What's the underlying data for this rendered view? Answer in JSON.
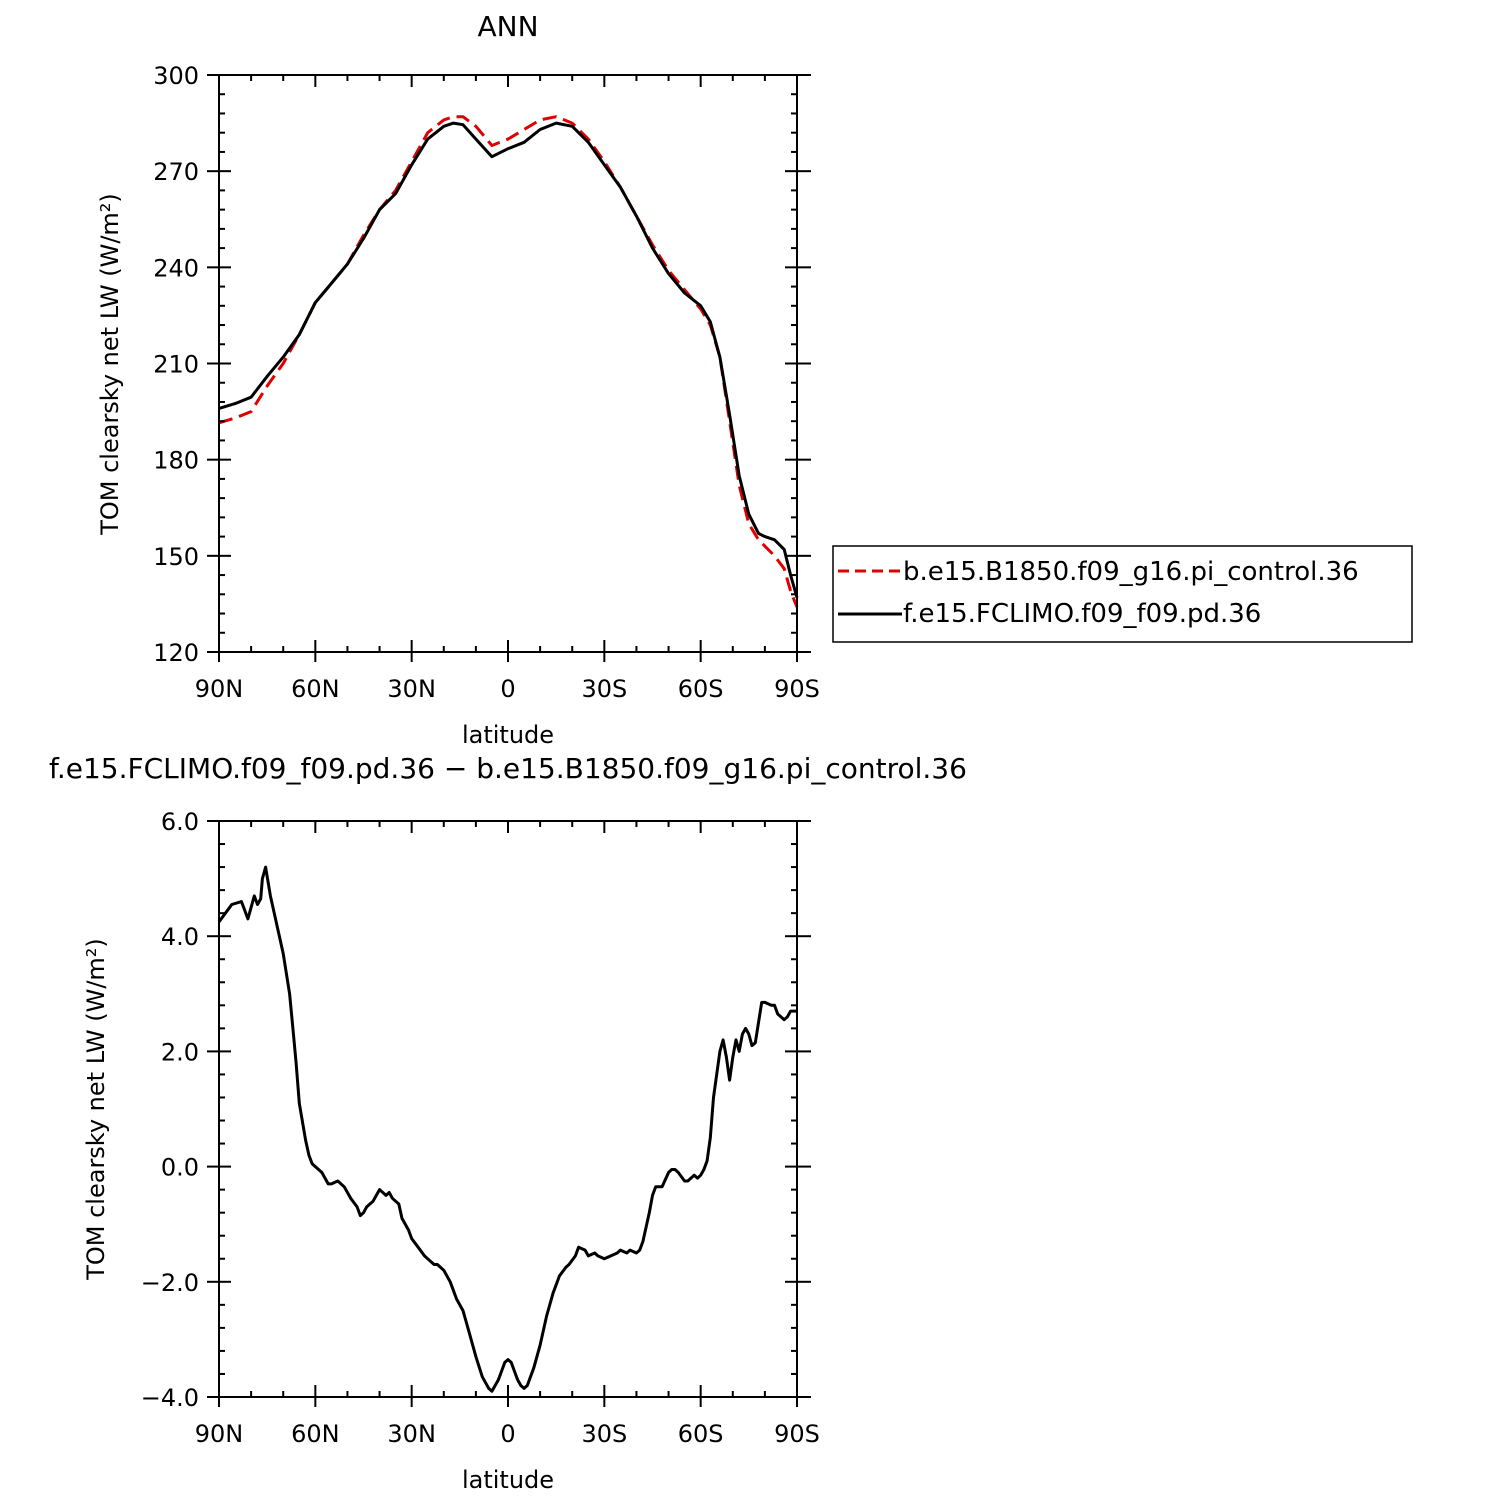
{
  "colors": {
    "control": "#e00000",
    "fclimo": "#000000",
    "axis": "#000000",
    "background": "#ffffff"
  },
  "chart_data": [
    {
      "type": "line",
      "title": "ANN",
      "xlabel": "latitude",
      "ylabel": "TOM clearsky net LW (W/m²)",
      "xlim": [
        90,
        -90
      ],
      "ylim": [
        120,
        300
      ],
      "xticks": [
        {
          "value": 90,
          "label": "90N"
        },
        {
          "value": 60,
          "label": "60N"
        },
        {
          "value": 30,
          "label": "30N"
        },
        {
          "value": 0,
          "label": "0"
        },
        {
          "value": -30,
          "label": "30S"
        },
        {
          "value": -60,
          "label": "60S"
        },
        {
          "value": -90,
          "label": "90S"
        }
      ],
      "yticks": [
        {
          "value": 120,
          "label": "120"
        },
        {
          "value": 150,
          "label": "150"
        },
        {
          "value": 180,
          "label": "180"
        },
        {
          "value": 210,
          "label": "210"
        },
        {
          "value": 240,
          "label": "240"
        },
        {
          "value": 270,
          "label": "270"
        },
        {
          "value": 300,
          "label": "300"
        }
      ],
      "legend_position": "right",
      "series": [
        {
          "name": "b.e15.B1850.f09_g16.pi_control.36",
          "style": "dashed",
          "color": "#e00000",
          "x": [
            90,
            85,
            80,
            75,
            70,
            65,
            60,
            55,
            50,
            45,
            40,
            35,
            30,
            25,
            20,
            17,
            14,
            10,
            5,
            0,
            -5,
            -10,
            -15,
            -20,
            -25,
            -30,
            -35,
            -40,
            -45,
            -50,
            -55,
            -60,
            -63,
            -66,
            -69,
            -72,
            -75,
            -78,
            -80,
            -83,
            -86,
            -88,
            -90
          ],
          "y": [
            191.5,
            193,
            195,
            203,
            210,
            219,
            229,
            235,
            241,
            250,
            258,
            264,
            273,
            282,
            286,
            287,
            287,
            284,
            278,
            280,
            283,
            286,
            287,
            285,
            280,
            273,
            265,
            256,
            247,
            239,
            233,
            227,
            222,
            212,
            192,
            172,
            160,
            155,
            153,
            150,
            146,
            139,
            134
          ]
        },
        {
          "name": "f.e15.FCLIMO.f09_f09.pd.36",
          "style": "solid",
          "color": "#000000",
          "x": [
            90,
            85,
            80,
            75,
            70,
            65,
            60,
            55,
            50,
            45,
            40,
            35,
            30,
            25,
            20,
            17,
            14,
            10,
            5,
            0,
            -5,
            -10,
            -15,
            -20,
            -25,
            -30,
            -35,
            -40,
            -45,
            -50,
            -55,
            -60,
            -63,
            -66,
            -69,
            -72,
            -75,
            -78,
            -80,
            -83,
            -86,
            -88,
            -90
          ],
          "y": [
            196,
            197.5,
            199.5,
            206,
            212,
            219,
            229,
            235,
            241,
            249,
            258,
            263,
            272,
            280,
            284,
            285,
            284.5,
            280,
            274.5,
            277,
            279,
            283,
            285,
            284,
            279,
            272,
            265,
            256,
            246,
            238,
            232,
            228,
            223,
            212,
            194,
            175,
            163,
            157,
            156,
            155,
            152,
            144,
            137
          ]
        }
      ]
    },
    {
      "type": "line",
      "title": "f.e15.FCLIMO.f09_f09.pd.36 − b.e15.B1850.f09_g16.pi_control.36",
      "xlabel": "latitude",
      "ylabel": "TOM clearsky net LW (W/m²)",
      "xlim": [
        90,
        -90
      ],
      "ylim": [
        -4.0,
        6.0
      ],
      "xticks": [
        {
          "value": 90,
          "label": "90N"
        },
        {
          "value": 60,
          "label": "60N"
        },
        {
          "value": 30,
          "label": "30N"
        },
        {
          "value": 0,
          "label": "0"
        },
        {
          "value": -30,
          "label": "30S"
        },
        {
          "value": -60,
          "label": "60S"
        },
        {
          "value": -90,
          "label": "90S"
        }
      ],
      "yticks": [
        {
          "value": -4,
          "label": "−4.0"
        },
        {
          "value": -2,
          "label": "−2.0"
        },
        {
          "value": 0,
          "label": "0.0"
        },
        {
          "value": 2,
          "label": "2.0"
        },
        {
          "value": 4,
          "label": "4.0"
        },
        {
          "value": 6,
          "label": "6.0"
        }
      ],
      "series": [
        {
          "style": "solid",
          "color": "#000000",
          "x": [
            90,
            88,
            86,
            83,
            81,
            79,
            78,
            77,
            76.5,
            75.5,
            74,
            72,
            70,
            68,
            67,
            66,
            65,
            63,
            62,
            61,
            60,
            58,
            56,
            55,
            53,
            51,
            49,
            47,
            46,
            45,
            44,
            43,
            42,
            41,
            40,
            38,
            37,
            36,
            35,
            34,
            33,
            31,
            30,
            28,
            26,
            25,
            24,
            23,
            22,
            21,
            20,
            18,
            16,
            14,
            12,
            10,
            8,
            6,
            5,
            3,
            2,
            1,
            0,
            -1,
            -2,
            -3,
            -4,
            -5,
            -6,
            -8,
            -10,
            -12,
            -14,
            -16,
            -18,
            -19,
            -21,
            -22,
            -24,
            -25,
            -27,
            -28,
            -30,
            -32,
            -34,
            -35,
            -37,
            -38,
            -40,
            -41,
            -42,
            -44,
            -45,
            -46,
            -47,
            -48,
            -50,
            -51,
            -52,
            -53,
            -55,
            -56,
            -58,
            -59,
            -60,
            -61,
            -62,
            -63,
            -64,
            -65,
            -66,
            -67,
            -68,
            -69,
            -70,
            -71,
            -72,
            -73,
            -74,
            -75,
            -76,
            -77,
            -78,
            -79,
            -80,
            -82,
            -83,
            -84,
            -85,
            -86,
            -87,
            -88,
            -90
          ],
          "y": [
            4.25,
            4.4,
            4.55,
            4.6,
            4.3,
            4.7,
            4.55,
            4.65,
            5.0,
            5.2,
            4.7,
            4.2,
            3.7,
            3.0,
            2.4,
            1.8,
            1.1,
            0.45,
            0.2,
            0.05,
            0.0,
            -0.1,
            -0.3,
            -0.3,
            -0.25,
            -0.35,
            -0.55,
            -0.7,
            -0.85,
            -0.8,
            -0.7,
            -0.65,
            -0.6,
            -0.5,
            -0.4,
            -0.5,
            -0.45,
            -0.55,
            -0.6,
            -0.65,
            -0.9,
            -1.1,
            -1.25,
            -1.4,
            -1.55,
            -1.6,
            -1.65,
            -1.7,
            -1.7,
            -1.75,
            -1.8,
            -2.0,
            -2.3,
            -2.5,
            -2.9,
            -3.3,
            -3.65,
            -3.85,
            -3.9,
            -3.7,
            -3.55,
            -3.4,
            -3.35,
            -3.4,
            -3.55,
            -3.7,
            -3.8,
            -3.85,
            -3.8,
            -3.5,
            -3.1,
            -2.6,
            -2.2,
            -1.9,
            -1.75,
            -1.7,
            -1.55,
            -1.4,
            -1.45,
            -1.55,
            -1.5,
            -1.55,
            -1.6,
            -1.55,
            -1.5,
            -1.45,
            -1.5,
            -1.45,
            -1.5,
            -1.45,
            -1.3,
            -0.8,
            -0.5,
            -0.35,
            -0.35,
            -0.35,
            -0.1,
            -0.05,
            -0.05,
            -0.1,
            -0.25,
            -0.25,
            -0.15,
            -0.2,
            -0.15,
            -0.05,
            0.1,
            0.5,
            1.2,
            1.6,
            2.0,
            2.2,
            1.9,
            1.5,
            1.9,
            2.2,
            2.0,
            2.3,
            2.4,
            2.3,
            2.1,
            2.15,
            2.5,
            2.85,
            2.85,
            2.8,
            2.8,
            2.65,
            2.6,
            2.55,
            2.6,
            2.7,
            2.7
          ]
        }
      ]
    }
  ]
}
